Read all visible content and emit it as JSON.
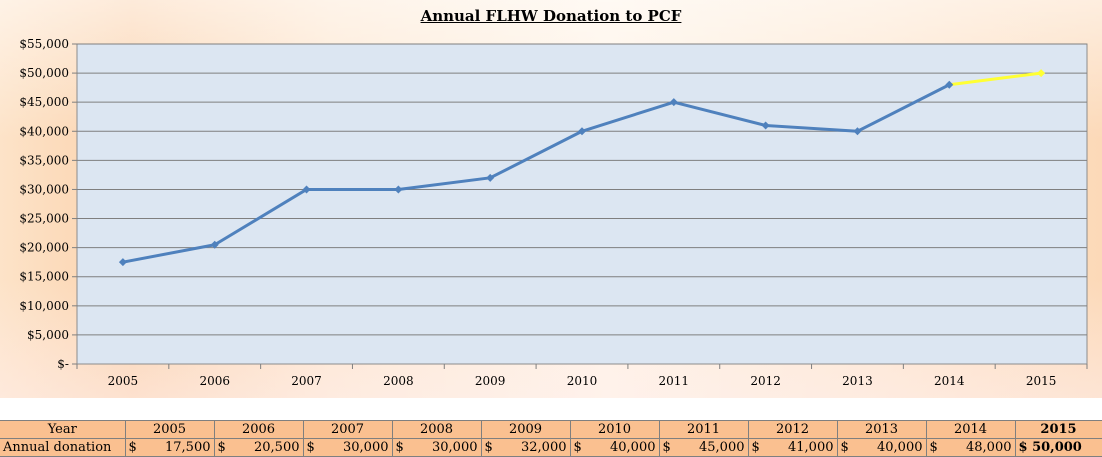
{
  "chart_data": {
    "type": "line",
    "title": "Annual FLHW Donation to PCF",
    "categories": [
      "2005",
      "2006",
      "2007",
      "2008",
      "2009",
      "2010",
      "2011",
      "2012",
      "2013",
      "2014",
      "2015"
    ],
    "series": [
      {
        "values": [
          17500,
          20500,
          30000,
          30000,
          32000,
          40000,
          45000,
          41000,
          40000,
          48000,
          50000
        ]
      }
    ],
    "highlight_segment": {
      "from": "2014",
      "to": "2015",
      "color": "#ffff33"
    },
    "line_color": "#4f81bd",
    "plot_background": "#dce6f2",
    "ylim": [
      0,
      55000
    ],
    "yticks": [
      "$55,000",
      "$50,000",
      "$45,000",
      "$40,000",
      "$35,000",
      "$30,000",
      "$25,000",
      "$20,000",
      "$15,000",
      "$10,000",
      "$5,000",
      "$-"
    ],
    "grid": true
  },
  "table": {
    "row1_label": "Year",
    "row2_label": "Annual donation",
    "currency": "$",
    "years": [
      "2005",
      "2006",
      "2007",
      "2008",
      "2009",
      "2010",
      "2011",
      "2012",
      "2013",
      "2014",
      "2015"
    ],
    "amounts": [
      "17,500",
      "20,500",
      "30,000",
      "30,000",
      "32,000",
      "40,000",
      "45,000",
      "41,000",
      "40,000",
      "48,000",
      "50,000"
    ],
    "highlight_label": "$ 50,000"
  }
}
